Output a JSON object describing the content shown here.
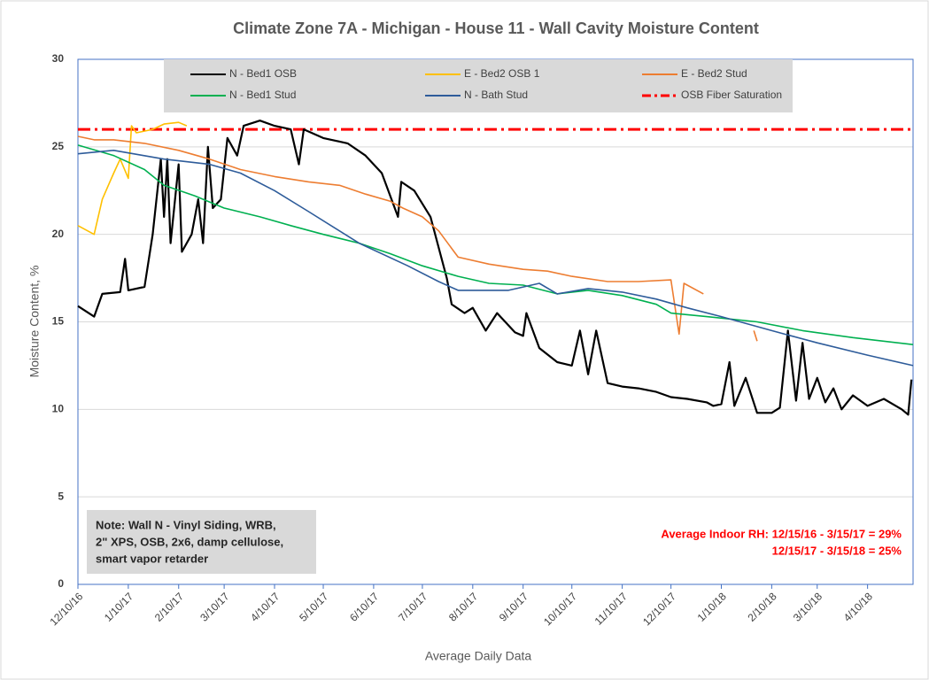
{
  "chart_data": {
    "type": "line",
    "title": "Climate Zone 7A - Michigan - House 11 - Wall Cavity Moisture Content",
    "x_label": "Average Daily Data",
    "y_label": "Moisture Content, %",
    "xlim": [
      "12/10/16",
      "5/8/18"
    ],
    "xticks": [
      "12/10/16",
      "1/10/17",
      "2/10/17",
      "3/10/17",
      "4/10/17",
      "5/10/17",
      "6/10/17",
      "7/10/17",
      "8/10/17",
      "9/10/17",
      "10/10/17",
      "11/10/17",
      "12/10/17",
      "1/10/18",
      "2/10/18",
      "3/10/18",
      "4/10/18"
    ],
    "ylim": [
      0,
      30
    ],
    "yticks": [
      0,
      5,
      10,
      15,
      20,
      25,
      30
    ],
    "grid": true,
    "series": [
      {
        "name": "N - Bed1 OSB",
        "color": "#000000",
        "x": [
          "12/10/16",
          "12/20/16",
          "12/25/16",
          "1/5/17",
          "1/8/17",
          "1/10/17",
          "1/20/17",
          "1/25/17",
          "1/30/17",
          "2/1/17",
          "2/3/17",
          "2/5/17",
          "2/10/17",
          "2/12/17",
          "2/18/17",
          "2/22/17",
          "2/25/17",
          "2/28/17",
          "3/3/17",
          "3/8/17",
          "3/12/17",
          "3/18/17",
          "3/22/17",
          "4/1/17",
          "4/10/17",
          "4/20/17",
          "4/25/17",
          "4/28/17",
          "5/10/17",
          "5/25/17",
          "6/5/17",
          "6/15/17",
          "6/25/17",
          "6/27/17",
          "7/5/17",
          "7/15/17",
          "7/25/17",
          "7/28/17",
          "8/5/17",
          "8/10/17",
          "8/18/17",
          "8/25/17",
          "9/5/17",
          "9/10/17",
          "9/12/17",
          "9/20/17",
          "10/1/17",
          "10/10/17",
          "10/15/17",
          "10/20/17",
          "10/25/17",
          "11/1/17",
          "11/10/17",
          "11/20/17",
          "12/1/17",
          "12/10/17",
          "12/20/17",
          "1/1/18",
          "1/5/18",
          "1/10/18",
          "1/15/18",
          "1/18/18",
          "1/25/18",
          "2/1/18",
          "2/10/18",
          "2/15/18",
          "2/20/18",
          "2/25/18",
          "3/1/18",
          "3/5/18",
          "3/10/18",
          "3/15/18",
          "3/20/18",
          "3/25/18",
          "4/1/18",
          "4/10/18",
          "4/20/18",
          "5/1/18",
          "5/5/18",
          "5/7/18"
        ],
        "values": [
          15.9,
          15.3,
          16.6,
          16.7,
          18.6,
          16.8,
          17,
          20,
          24.3,
          21,
          24.3,
          19.5,
          24,
          19,
          20,
          22,
          19.5,
          25,
          21.5,
          22,
          25.5,
          24.5,
          26.2,
          26.5,
          26.2,
          26,
          24,
          26,
          25.5,
          25.2,
          24.5,
          23.5,
          21,
          23,
          22.5,
          21,
          17.5,
          16,
          15.5,
          15.8,
          14.5,
          15.5,
          14.4,
          14.2,
          15.5,
          13.5,
          12.7,
          12.5,
          14.5,
          12,
          14.5,
          11.5,
          11.3,
          11.2,
          11,
          10.7,
          10.6,
          10.4,
          10.2,
          10.3,
          12.7,
          10.2,
          11.8,
          9.8,
          9.8,
          10.1,
          14.5,
          10.5,
          13.8,
          10.6,
          11.8,
          10.4,
          11.2,
          10,
          10.8,
          10.2,
          10.6,
          10,
          9.7,
          11.7
        ]
      },
      {
        "name": "E - Bed2 OSB 1",
        "color": "#ffc000",
        "x": [
          "12/10/16",
          "12/20/16",
          "12/25/16",
          "1/1/17",
          "1/5/17",
          "1/10/17",
          "1/12/17",
          "1/15/17",
          "1/25/17",
          "2/1/17",
          "2/10/17",
          "2/15/17"
        ],
        "values": [
          20.5,
          20,
          22,
          23.5,
          24.3,
          23.2,
          26.2,
          25.8,
          26,
          26.3,
          26.4,
          26.2
        ]
      },
      {
        "name": "E - Bed2 Stud",
        "color": "#ed7d31",
        "x": [
          "12/10/16",
          "12/20/16",
          "1/1/17",
          "1/20/17",
          "2/10/17",
          "3/1/17",
          "3/20/17",
          "4/10/17",
          "5/1/17",
          "5/20/17",
          "6/5/17",
          "6/20/17",
          "6/28/17",
          "7/10/17",
          "7/20/17",
          "8/1/17",
          "8/20/17",
          "9/10/17",
          "9/25/17",
          "10/10/17",
          "11/1/17",
          "11/20/17",
          "12/10/17",
          "12/15/17",
          "12/18/17",
          "12/30/17",
          "1/15/18",
          "1/30/18",
          "2/1/18"
        ],
        "values": [
          25.6,
          25.4,
          25.4,
          25.2,
          24.8,
          24.3,
          23.7,
          23.3,
          23,
          22.8,
          22.3,
          21.9,
          21.5,
          21,
          20.2,
          18.7,
          18.3,
          18,
          17.9,
          17.6,
          17.3,
          17.3,
          17.4,
          14.3,
          17.2,
          16.6,
          null,
          14.5,
          13.9
        ]
      },
      {
        "name": "N - Bed1 Stud",
        "color": "#00b050",
        "x": [
          "12/10/16",
          "1/1/17",
          "1/20/17",
          "2/1/17",
          "2/20/17",
          "3/10/17",
          "4/1/17",
          "4/20/17",
          "5/10/17",
          "6/1/17",
          "6/20/17",
          "7/10/17",
          "8/1/17",
          "8/20/17",
          "9/10/17",
          "10/1/17",
          "10/20/17",
          "11/10/17",
          "12/1/17",
          "12/10/17",
          "1/1/18",
          "2/1/18",
          "3/1/18",
          "4/1/18",
          "5/8/18"
        ],
        "values": [
          25.1,
          24.5,
          23.7,
          22.8,
          22.2,
          21.5,
          21,
          20.5,
          20,
          19.5,
          18.9,
          18.2,
          17.6,
          17.2,
          17.1,
          16.6,
          16.8,
          16.5,
          16,
          15.5,
          15.3,
          15,
          14.5,
          14.1,
          13.7
        ]
      },
      {
        "name": "N - Bath Stud",
        "color": "#2e5c9a",
        "x": [
          "12/10/16",
          "1/1/17",
          "2/1/17",
          "3/1/17",
          "3/20/17",
          "4/10/17",
          "5/1/17",
          "6/1/17",
          "7/1/17",
          "7/20/17",
          "8/1/17",
          "9/1/17",
          "9/20/17",
          "10/1/17",
          "10/20/17",
          "11/10/17",
          "12/1/17",
          "12/20/17",
          "1/10/18",
          "2/10/18",
          "3/10/18",
          "4/10/18",
          "5/8/18"
        ],
        "values": [
          24.6,
          24.8,
          24.3,
          24,
          23.5,
          22.5,
          21.3,
          19.5,
          18.2,
          17.3,
          16.8,
          16.8,
          17.2,
          16.6,
          16.9,
          16.7,
          16.3,
          15.8,
          15.3,
          14.5,
          13.8,
          13.1,
          12.5
        ]
      }
    ],
    "reference_lines": [
      {
        "name": "OSB Fiber Saturation",
        "value": 26,
        "color": "#ff0000"
      }
    ],
    "note": [
      "Note: Wall N - Vinyl Siding, WRB,",
      "2\" XPS, OSB, 2x6, damp cellulose,",
      "smart vapor retarder"
    ],
    "rh_annotation": [
      "Average Indoor RH: 12/15/16 - 3/15/17 = 29%",
      "12/15/17 - 3/15/18 = 25%"
    ]
  }
}
